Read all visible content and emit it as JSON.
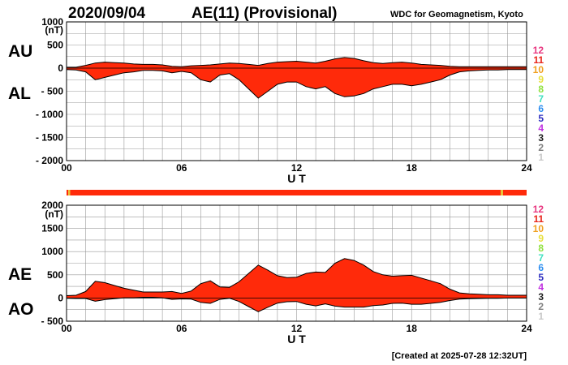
{
  "header": {
    "date": "2020/09/04",
    "title": "AE(11) (Provisional)",
    "source": "WDC for Geomagnetism, Kyoto"
  },
  "footer": {
    "created": "[Created at 2025-07-28 12:32UT]"
  },
  "legend_numbers": [
    {
      "label": "12",
      "color": "#e8357f"
    },
    {
      "label": "11",
      "color": "#e8251a"
    },
    {
      "label": "10",
      "color": "#f0a020"
    },
    {
      "label": "9",
      "color": "#e8e040"
    },
    {
      "label": "8",
      "color": "#90e040"
    },
    {
      "label": "7",
      "color": "#40e0c0"
    },
    {
      "label": "6",
      "color": "#3090f0"
    },
    {
      "label": "5",
      "color": "#3030c0"
    },
    {
      "label": "4",
      "color": "#c030e0"
    },
    {
      "label": "3",
      "color": "#202020"
    },
    {
      "label": "2",
      "color": "#808080"
    },
    {
      "label": "1",
      "color": "#c8c8c8"
    }
  ],
  "colors": {
    "fill": "#ff2a0a",
    "outline": "#000000",
    "grid": "#999999",
    "station_bar": "#ff2a0a",
    "station_bar_mark": "#e8c23a"
  },
  "chart_data": [
    {
      "type": "area",
      "panel": "AU/AL",
      "ylabel_top": "AU",
      "ylabel_bottom": "AL",
      "unit": "(nT)",
      "ylim": [
        -2000,
        1000
      ],
      "yticks": [
        1000,
        500,
        0,
        -500,
        -1000,
        -1500,
        -2000
      ],
      "ytick_labels": [
        "1000",
        "500",
        "0",
        "- 500",
        "- 1000",
        "- 1500",
        "- 2000"
      ],
      "xlabel": "U T",
      "xlim": [
        0,
        24
      ],
      "xticks": [
        0,
        6,
        12,
        18,
        24
      ],
      "xtick_labels": [
        "00",
        "06",
        "12",
        "18",
        "24"
      ],
      "grid": true,
      "x": [
        0,
        0.5,
        1,
        1.5,
        2,
        2.5,
        3,
        3.5,
        4,
        4.5,
        5,
        5.5,
        6,
        6.5,
        7,
        7.5,
        8,
        8.5,
        9,
        9.5,
        10,
        10.5,
        11,
        11.5,
        12,
        12.5,
        13,
        13.5,
        14,
        14.5,
        15,
        15.5,
        16,
        16.5,
        17,
        17.5,
        18,
        18.5,
        19,
        19.5,
        20,
        20.5,
        21,
        21.5,
        22,
        22.5,
        23,
        23.5,
        24
      ],
      "series": [
        {
          "name": "AU",
          "values": [
            20,
            20,
            60,
            110,
            130,
            120,
            110,
            90,
            80,
            80,
            70,
            40,
            30,
            50,
            60,
            70,
            90,
            110,
            100,
            80,
            60,
            100,
            130,
            140,
            150,
            130,
            110,
            150,
            200,
            230,
            210,
            160,
            120,
            100,
            120,
            130,
            110,
            80,
            70,
            60,
            40,
            30,
            30,
            30,
            30,
            30,
            30,
            30,
            30
          ]
        },
        {
          "name": "AL",
          "values": [
            -30,
            -40,
            -80,
            -250,
            -200,
            -150,
            -100,
            -80,
            -50,
            -50,
            -60,
            -100,
            -70,
            -100,
            -250,
            -300,
            -150,
            -120,
            -250,
            -450,
            -650,
            -500,
            -350,
            -300,
            -300,
            -400,
            -450,
            -400,
            -550,
            -620,
            -600,
            -550,
            -450,
            -400,
            -350,
            -350,
            -380,
            -350,
            -300,
            -250,
            -150,
            -80,
            -60,
            -50,
            -40,
            -40,
            -30,
            -30,
            -30
          ]
        }
      ]
    },
    {
      "type": "area",
      "panel": "AE/AO",
      "ylabel_top": "AE",
      "ylabel_bottom": "AO",
      "unit": "(nT)",
      "ylim": [
        -500,
        2000
      ],
      "yticks": [
        2000,
        1500,
        1000,
        500,
        0,
        -500
      ],
      "ytick_labels": [
        "2000",
        "1500",
        "1000",
        "500",
        "0",
        "- 500"
      ],
      "xlabel": "U T",
      "xlim": [
        0,
        24
      ],
      "xticks": [
        0,
        6,
        12,
        18,
        24
      ],
      "xtick_labels": [
        "00",
        "06",
        "12",
        "18",
        "24"
      ],
      "grid": true,
      "x": [
        0,
        0.5,
        1,
        1.5,
        2,
        2.5,
        3,
        3.5,
        4,
        4.5,
        5,
        5.5,
        6,
        6.5,
        7,
        7.5,
        8,
        8.5,
        9,
        9.5,
        10,
        10.5,
        11,
        11.5,
        12,
        12.5,
        13,
        13.5,
        14,
        14.5,
        15,
        15.5,
        16,
        16.5,
        17,
        17.5,
        18,
        18.5,
        19,
        19.5,
        20,
        20.5,
        21,
        21.5,
        22,
        22.5,
        23,
        23.5,
        24
      ],
      "series": [
        {
          "name": "AE",
          "values": [
            50,
            60,
            140,
            360,
            330,
            270,
            210,
            170,
            130,
            130,
            130,
            140,
            100,
            150,
            310,
            370,
            240,
            230,
            350,
            530,
            710,
            600,
            480,
            440,
            450,
            530,
            560,
            550,
            750,
            850,
            810,
            710,
            570,
            500,
            470,
            480,
            490,
            430,
            370,
            310,
            190,
            110,
            90,
            80,
            70,
            70,
            60,
            60,
            60
          ]
        },
        {
          "name": "AO",
          "values": [
            -5,
            -10,
            -10,
            -70,
            -35,
            -15,
            5,
            5,
            15,
            15,
            5,
            -30,
            -20,
            -25,
            -95,
            -115,
            -30,
            -5,
            -75,
            -185,
            -295,
            -200,
            -110,
            -80,
            -75,
            -135,
            -170,
            -125,
            -175,
            -195,
            -195,
            -195,
            -165,
            -150,
            -115,
            -110,
            -135,
            -135,
            -115,
            -95,
            -55,
            -25,
            -15,
            -10,
            -5,
            -5,
            0,
            0,
            0
          ]
        }
      ]
    }
  ]
}
